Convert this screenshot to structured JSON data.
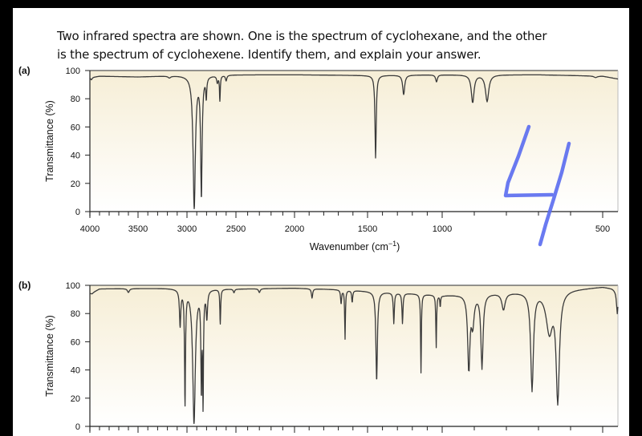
{
  "question": {
    "line1": "Two infrared spectra are shown. One is the spectrum of cyclohexane, and the other",
    "line2": "is the spectrum of cyclohexene. Identify them, and explain your answer."
  },
  "handwritten_annotation": "4",
  "colors": {
    "plot_background_top": "#f6eed6",
    "plot_background_bottom": "#ffffff",
    "trace": "#3a3a3a",
    "ink": "#5a6cf0"
  },
  "chart_data": [
    {
      "type": "line",
      "panel_label": "(a)",
      "ylabel": "Transmittance (%)",
      "xlabel": "Wavenumber (cm",
      "xlabel_sup": "−1",
      "xlabel_end": ")",
      "xlim": [
        4000,
        450
      ],
      "ylim": [
        0,
        100
      ],
      "x_reversed": true,
      "x_tick_labels": [
        "4000",
        "3500",
        "3000",
        "2500",
        "2000",
        "1500",
        "1000",
        "500"
      ],
      "y_tick_labels": [
        "0",
        "20",
        "40",
        "60",
        "80",
        "100"
      ],
      "grid": false,
      "baseline": [
        [
          4000,
          95
        ],
        [
          3900,
          96
        ],
        [
          3500,
          95.5
        ],
        [
          3100,
          96.5
        ],
        [
          2500,
          97
        ],
        [
          2000,
          97
        ],
        [
          1500,
          96.5
        ],
        [
          1000,
          97
        ],
        [
          700,
          97
        ],
        [
          500,
          96
        ],
        [
          450,
          94
        ]
      ],
      "peaks": [
        [
          3985,
          93.5,
          10
        ],
        [
          3180,
          95,
          15
        ],
        [
          2926,
          2,
          14
        ],
        [
          2853,
          10,
          9
        ],
        [
          2803,
          82,
          6
        ],
        [
          2690,
          92,
          8
        ],
        [
          2664,
          79,
          5
        ],
        [
          2600,
          93,
          8
        ],
        [
          1446,
          38,
          5
        ],
        [
          1258,
          83,
          8
        ],
        [
          1038,
          92,
          7
        ],
        [
          905,
          77,
          5
        ],
        [
          860,
          78,
          6
        ],
        [
          522,
          95,
          6
        ]
      ]
    },
    {
      "type": "line",
      "panel_label": "(b)",
      "ylabel": "Transmittance (%)",
      "xlim": [
        4000,
        450
      ],
      "ylim": [
        0,
        100
      ],
      "x_reversed": true,
      "y_tick_labels": [
        "0",
        "20",
        "40",
        "60",
        "80",
        "100"
      ],
      "grid": false,
      "baseline": [
        [
          4000,
          94
        ],
        [
          3900,
          97.5
        ],
        [
          3200,
          98
        ],
        [
          2500,
          97.5
        ],
        [
          2000,
          98
        ],
        [
          1700,
          97
        ],
        [
          1000,
          93
        ],
        [
          800,
          95
        ],
        [
          560,
          98
        ],
        [
          500,
          99
        ],
        [
          470,
          98
        ],
        [
          450,
          96
        ]
      ],
      "peaks": [
        [
          3980,
          94,
          12
        ],
        [
          3600,
          95,
          12
        ],
        [
          3070,
          72,
          8
        ],
        [
          3020,
          15,
          6
        ],
        [
          2928,
          2,
          16
        ],
        [
          2853,
          23,
          6
        ],
        [
          2836,
          12,
          5
        ],
        [
          2797,
          78,
          8
        ],
        [
          2660,
          73,
          5
        ],
        [
          2520,
          95,
          8
        ],
        [
          2300,
          95,
          8
        ],
        [
          1880,
          91,
          5
        ],
        [
          1681,
          87,
          4
        ],
        [
          1654,
          62,
          3
        ],
        [
          1605,
          88,
          4
        ],
        [
          1439,
          32,
          6
        ],
        [
          1324,
          73,
          4
        ],
        [
          1266,
          73,
          4
        ],
        [
          1142,
          38,
          3
        ],
        [
          1040,
          56,
          3
        ],
        [
          1013,
          85,
          3
        ],
        [
          917,
          38,
          4
        ],
        [
          905,
          72,
          5
        ],
        [
          876,
          41,
          4
        ],
        [
          809,
          83,
          6
        ],
        [
          720,
          25,
          5
        ],
        [
          666,
          67,
          12
        ],
        [
          640,
          16,
          6
        ],
        [
          452,
          80,
          3
        ]
      ]
    }
  ]
}
